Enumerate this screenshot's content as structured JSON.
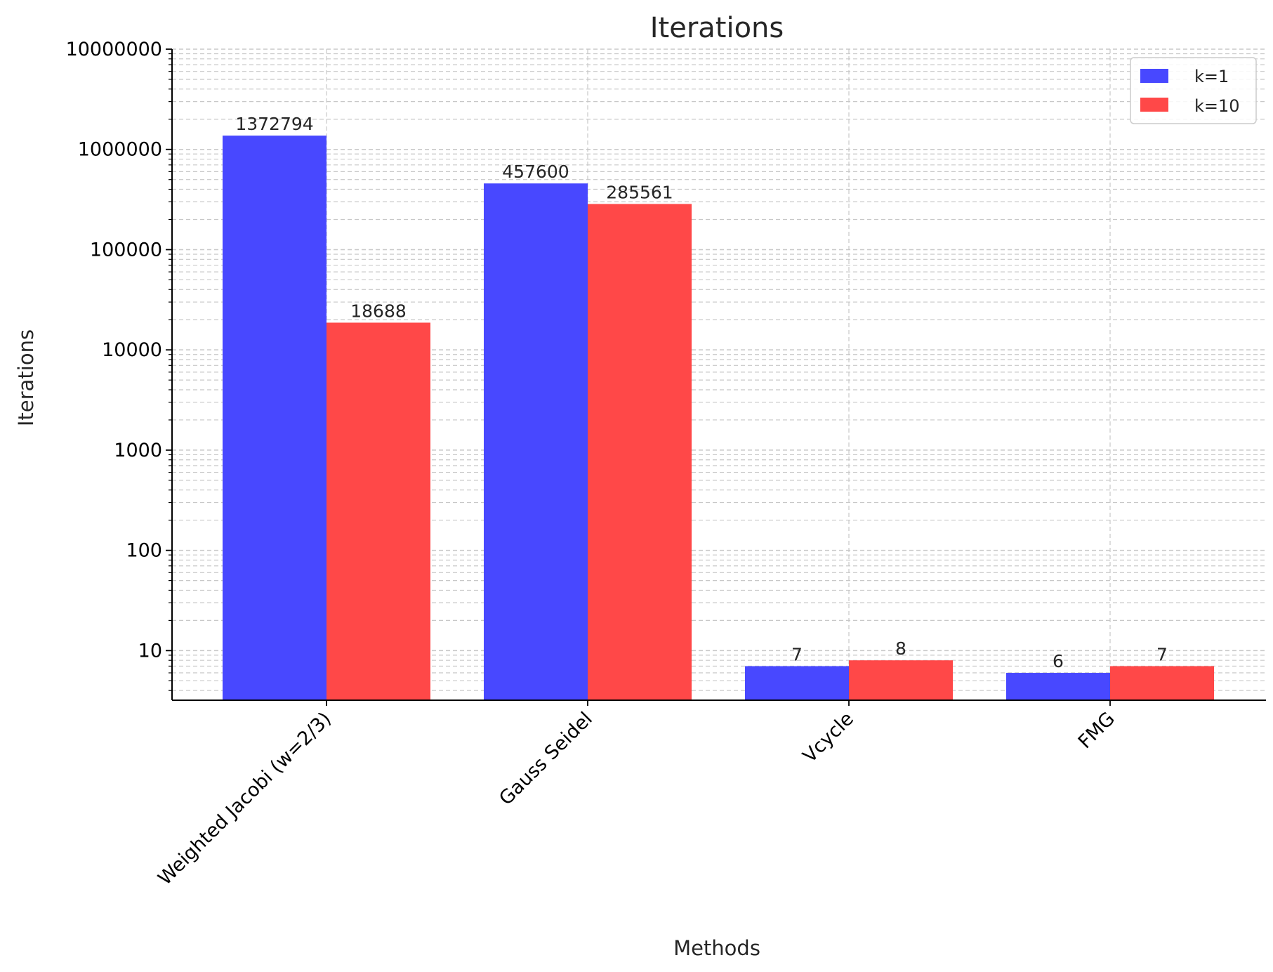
{
  "chart_data": {
    "type": "bar",
    "title": "Iterations",
    "xlabel": "Methods",
    "ylabel": "Iterations",
    "yscale": "log",
    "ylim": [
      3.2,
      10000000
    ],
    "categories": [
      "Weighted Jacobi (w=2/3)",
      "Gauss Seidel",
      "Vcycle",
      "FMG"
    ],
    "series": [
      {
        "name": "k=1",
        "color": "#4848ff",
        "values": [
          1372794,
          457600,
          7,
          6
        ],
        "labels": [
          "1372794",
          "457600",
          "7",
          "6"
        ]
      },
      {
        "name": "k=10",
        "color": "#ff4848",
        "values": [
          18688,
          285561,
          8,
          7
        ],
        "labels": [
          "18688",
          "285561",
          "8",
          "7"
        ]
      }
    ],
    "yticks": [
      10,
      100,
      1000,
      10000,
      100000,
      1000000,
      10000000
    ],
    "ytick_labels": [
      "10",
      "100",
      "1000",
      "10000",
      "100000",
      "1000000",
      "10000000"
    ],
    "grid": true,
    "legend": "top-right"
  }
}
